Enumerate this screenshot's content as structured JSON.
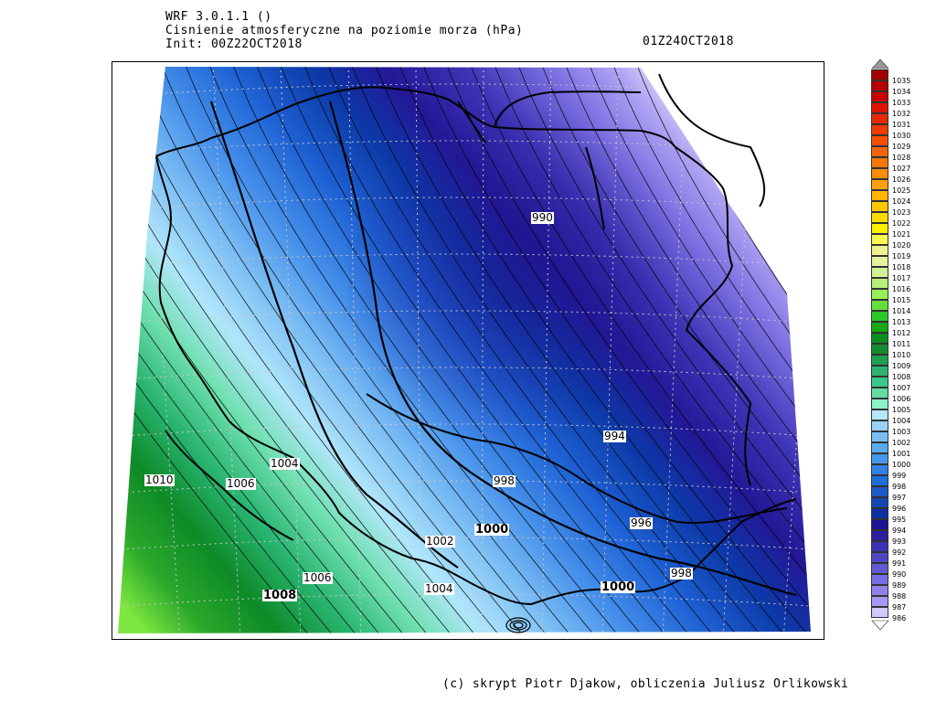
{
  "header": {
    "model": "WRF 3.0.1.1 ()",
    "variable": "Cisnienie atmosferyczne na poziomie morza (hPa)",
    "init": "Init: 00Z22OCT2018",
    "valid": "01Z24OCT2018"
  },
  "isobar_labels": [
    {
      "text": "990",
      "bold": false
    },
    {
      "text": "994",
      "bold": false
    },
    {
      "text": "998",
      "bold": false
    },
    {
      "text": "996",
      "bold": false
    },
    {
      "text": "998",
      "bold": false
    },
    {
      "text": "1000",
      "bold": true
    },
    {
      "text": "1000",
      "bold": true
    },
    {
      "text": "1002",
      "bold": false
    },
    {
      "text": "1004",
      "bold": false
    },
    {
      "text": "1004",
      "bold": false
    },
    {
      "text": "1006",
      "bold": false
    },
    {
      "text": "1006",
      "bold": false
    },
    {
      "text": "1008",
      "bold": true
    },
    {
      "text": "1010",
      "bold": false
    }
  ],
  "colorbar": {
    "levels": [
      "1035",
      "1034",
      "1033",
      "1032",
      "1031",
      "1030",
      "1029",
      "1028",
      "1027",
      "1026",
      "1025",
      "1024",
      "1023",
      "1022",
      "1021",
      "1020",
      "1019",
      "1018",
      "1017",
      "1016",
      "1015",
      "1014",
      "1013",
      "1012",
      "1011",
      "1010",
      "1009",
      "1008",
      "1007",
      "1006",
      "1005",
      "1004",
      "1003",
      "1002",
      "1001",
      "1000",
      "999",
      "998",
      "997",
      "996",
      "995",
      "994",
      "993",
      "992",
      "991",
      "990",
      "989",
      "988",
      "987",
      "986"
    ],
    "colors": [
      "#a00000",
      "#b40000",
      "#c80000",
      "#dc1400",
      "#e82800",
      "#f03c00",
      "#f55000",
      "#f86400",
      "#fa7800",
      "#fc8c00",
      "#fda000",
      "#feb400",
      "#ffc800",
      "#ffdc00",
      "#fff000",
      "#f8f850",
      "#f0f08c",
      "#e6f0a0",
      "#d2f096",
      "#b4f078",
      "#96f05a",
      "#64e03c",
      "#28c828",
      "#14aa14",
      "#0a8c1e",
      "#148c32",
      "#1ea050",
      "#2cb46e",
      "#3cc88c",
      "#64dca0",
      "#8cf0c8",
      "#b4e6ff",
      "#96d2fa",
      "#78bef5",
      "#5aaaf0",
      "#4696ec",
      "#3282e6",
      "#1e6edc",
      "#1e5ac8",
      "#1446b4",
      "#0a32a0",
      "#1e1496",
      "#2d1ea0",
      "#3c32b4",
      "#5046c3",
      "#645ad2",
      "#786ee1",
      "#9082ec",
      "#aa96f5",
      "#d2c8fa"
    ]
  },
  "credit": "(c) skrypt Piotr Djakow, obliczenia Juliusz Orlikowski"
}
